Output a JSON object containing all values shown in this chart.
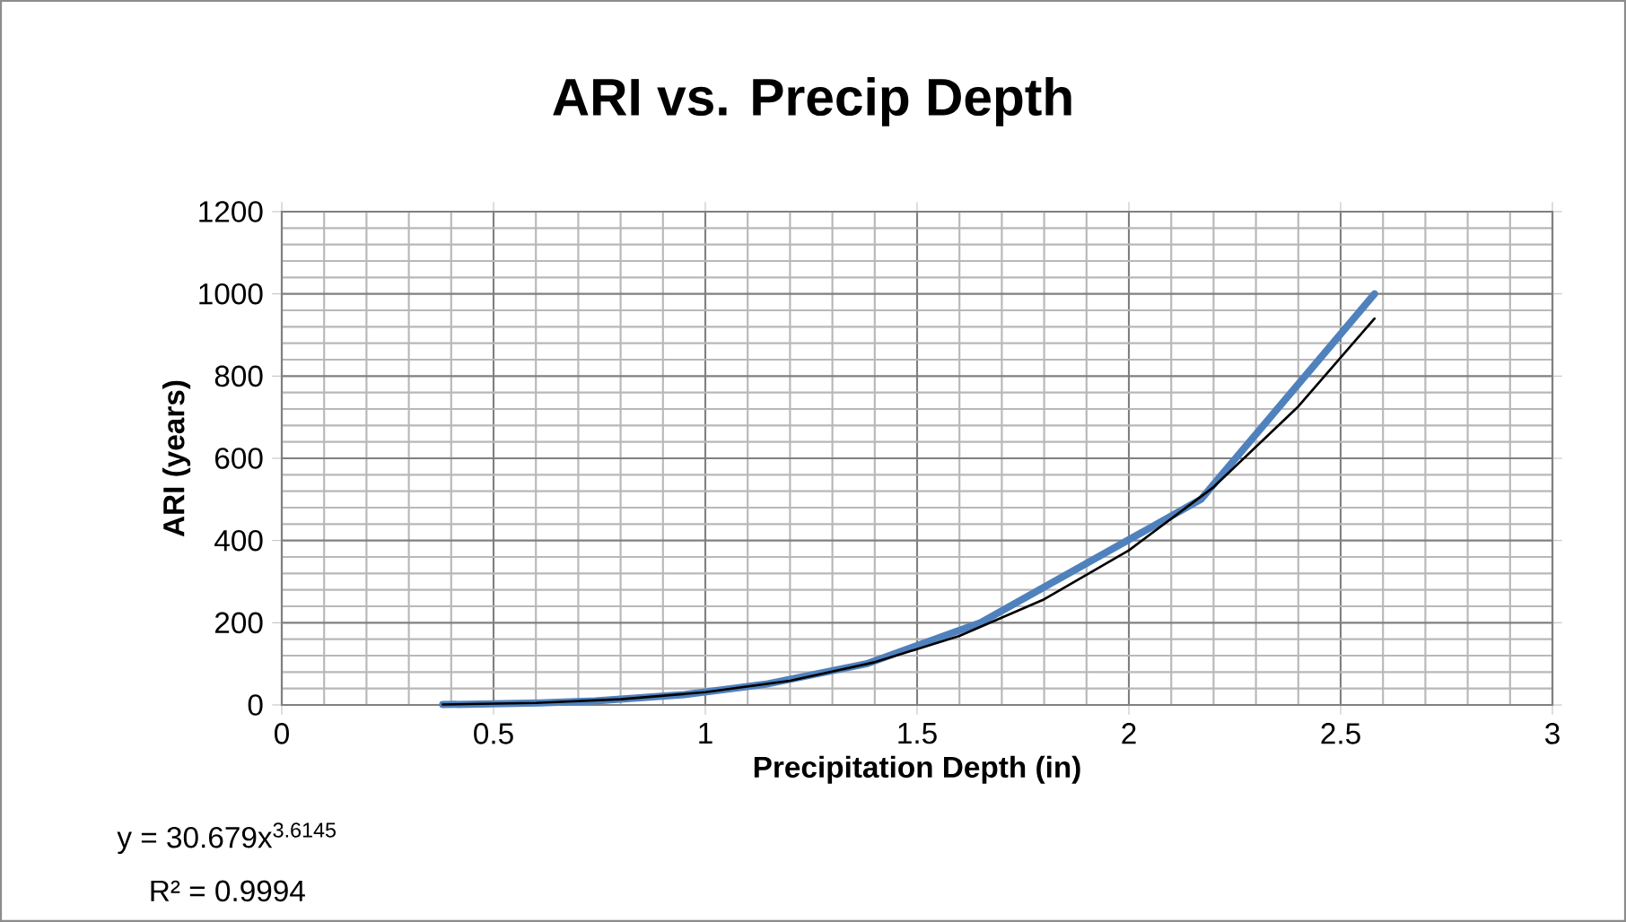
{
  "chart_data": {
    "type": "line",
    "title": "ARI vs. Precip Depth",
    "xlabel": "Precipitation Depth (in)",
    "ylabel": "ARI (years)",
    "series": [
      {
        "color": "#4f81bd",
        "x": [
          0.38,
          0.47,
          0.61,
          0.74,
          0.95,
          1.14,
          1.38,
          1.65,
          2.17,
          2.58
        ],
        "values": [
          1,
          2,
          5,
          10,
          25,
          50,
          100,
          200,
          500,
          1000
        ]
      },
      {
        "type": "line",
        "color": "#000000",
        "x": [
          0.38,
          0.6,
          0.8,
          1.0,
          1.2,
          1.4,
          1.6,
          1.8,
          2.0,
          2.2,
          2.4,
          2.58
        ],
        "values": [
          1,
          5,
          14,
          31,
          59,
          104,
          168,
          257,
          376,
          530,
          726,
          940
        ]
      }
    ],
    "xlim": [
      0,
      3
    ],
    "ylim": [
      0,
      1200
    ],
    "xticks": [
      0,
      0.5,
      1,
      1.5,
      2,
      2.5,
      3
    ],
    "yticks": [
      0,
      200,
      400,
      600,
      800,
      1000,
      1200
    ],
    "grid": true,
    "annotations": [
      "y = 30.679x$^{3.6145}$",
      "R² = 0.9994"
    ]
  }
}
